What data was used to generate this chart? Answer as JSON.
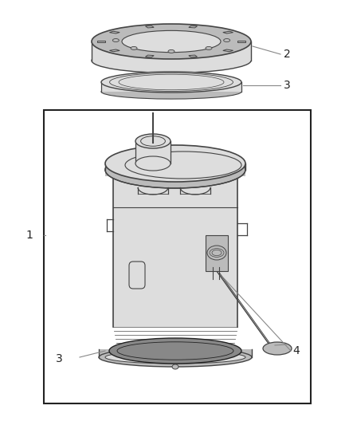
{
  "bg_color": "#ffffff",
  "lc": "#444444",
  "dk": "#222222",
  "gray1": "#888888",
  "gray2": "#bbbbbb",
  "gray3": "#dddddd",
  "fig_width": 4.39,
  "fig_height": 5.33,
  "dpi": 100
}
